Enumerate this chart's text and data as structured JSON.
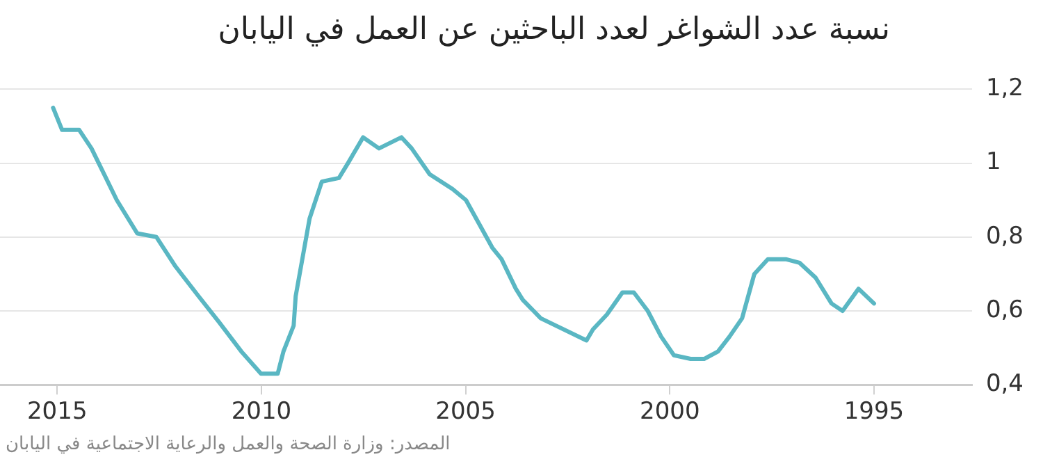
{
  "chart_data": {
    "type": "line",
    "title": "نسبة عدد الشواغر لعدد الباحثين عن العمل في اليابان",
    "annotations": [
      "المصدر: وزارة الصحة والعمل والرعاية الاجتماعية في اليابان"
    ],
    "series": [
      {
        "color": "#5ab7c3",
        "x": [
          2015.1,
          2014.88,
          2014.46,
          2014.16,
          2013.54,
          2013.04,
          2012.57,
          2012.1,
          2011.54,
          2011.04,
          2010.49,
          2010.01,
          2009.6,
          2009.46,
          2009.21,
          2009.16,
          2008.82,
          2008.52,
          2008.1,
          2007.88,
          2007.51,
          2007.12,
          2006.57,
          2006.32,
          2005.88,
          2005.32,
          2004.99,
          2004.34,
          2004.12,
          2003.77,
          2003.6,
          2003.16,
          2002.04,
          2001.88,
          2001.54,
          2001.16,
          2000.88,
          2000.54,
          2000.21,
          1999.9,
          1999.49,
          1999.16,
          1998.82,
          1998.54,
          1998.23,
          1997.93,
          1997.6,
          1997.16,
          1996.82,
          1996.43,
          1996.04,
          1995.77,
          1995.38,
          1995.0
        ],
        "values": [
          1.15,
          1.09,
          1.09,
          1.04,
          0.9,
          0.81,
          0.8,
          0.72,
          0.64,
          0.57,
          0.49,
          0.43,
          0.43,
          0.49,
          0.56,
          0.64,
          0.85,
          0.95,
          0.96,
          1.0,
          1.07,
          1.04,
          1.07,
          1.04,
          0.97,
          0.93,
          0.9,
          0.77,
          0.74,
          0.66,
          0.63,
          0.58,
          0.52,
          0.55,
          0.59,
          0.65,
          0.65,
          0.6,
          0.53,
          0.48,
          0.47,
          0.47,
          0.49,
          0.53,
          0.58,
          0.7,
          0.74,
          0.74,
          0.73,
          0.69,
          0.62,
          0.6,
          0.66,
          0.62
        ]
      }
    ],
    "xlim": [
      2016.4,
      1992.6
    ],
    "xticks": [
      2015,
      2010,
      2005,
      2000,
      1995
    ],
    "ylim": [
      0.4,
      1.2
    ],
    "yticks": [
      {
        "value": 0.4,
        "label": "0,4"
      },
      {
        "value": 0.6,
        "label": "0,6"
      },
      {
        "value": 0.8,
        "label": "0,8"
      },
      {
        "value": 1,
        "label": "1"
      },
      {
        "value": 1.2,
        "label": "1,2"
      }
    ],
    "grid": "y",
    "marker": "none",
    "line_style": "solid"
  }
}
